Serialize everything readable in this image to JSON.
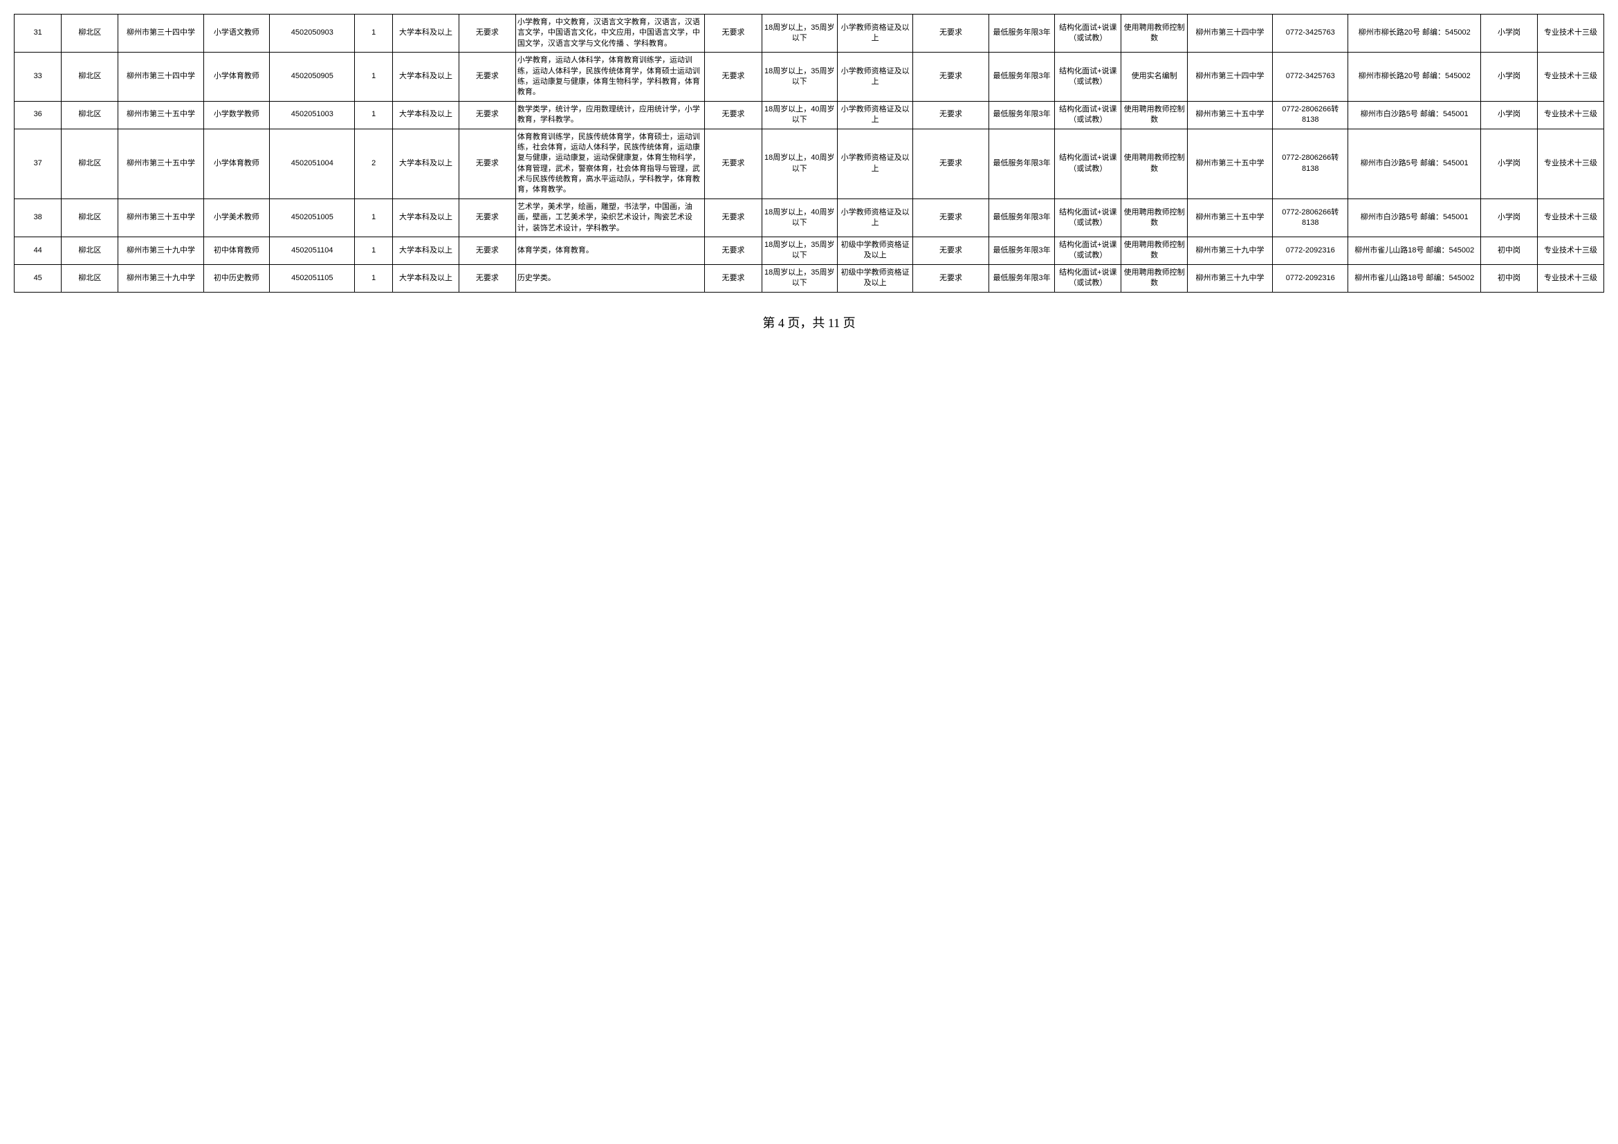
{
  "footer": "第 4 页，共 11 页",
  "columns": [
    "c0",
    "c1",
    "c2",
    "c3",
    "c4",
    "c5",
    "c6",
    "c7",
    "c8",
    "c9",
    "c10",
    "c11",
    "c12",
    "c13",
    "c14",
    "c15",
    "c16",
    "c17",
    "c18",
    "c19",
    "c20"
  ],
  "rows": [
    {
      "cells": [
        "31",
        "柳北区",
        "柳州市第三十四中学",
        "小学语文教师",
        "4502050903",
        "1",
        "大学本科及以上",
        "无要求",
        "小学教育，中文教育，汉语言文字教育，汉语言，汉语言文学，中国语言文化，中文应用，中国语言文学，中国文学，汉语言文学与文化传播 、学科教育。",
        "无要求",
        "18周岁以上，35周岁以下",
        "小学教师资格证及以上",
        "无要求",
        "最低服务年限3年",
        "结构化面试+说课（或试教）",
        "使用聘用教师控制数",
        "柳州市第三十四中学",
        "0772-3425763",
        "柳州市柳长路20号 邮编：545002",
        "小学岗",
        "专业技术十三级"
      ]
    },
    {
      "cells": [
        "33",
        "柳北区",
        "柳州市第三十四中学",
        "小学体育教师",
        "4502050905",
        "1",
        "大学本科及以上",
        "无要求",
        "小学教育，运动人体科学，体育教育训练学，运动训练，运动人体科学，民族传统体育学，体育硕士运动训练，运动康复与健康，体育生物科学，学科教育，体育教育。",
        "无要求",
        "18周岁以上，35周岁以下",
        "小学教师资格证及以上",
        "无要求",
        "最低服务年限3年",
        "结构化面试+说课（或试教）",
        "使用实名编制",
        "柳州市第三十四中学",
        "0772-3425763",
        "柳州市柳长路20号 邮编：545002",
        "小学岗",
        "专业技术十三级"
      ]
    },
    {
      "cells": [
        "36",
        "柳北区",
        "柳州市第三十五中学",
        "小学数学教师",
        "4502051003",
        "1",
        "大学本科及以上",
        "无要求",
        "数学类学，统计学，应用数理统计，应用统计学，小学教育，学科教学。",
        "无要求",
        "18周岁以上，40周岁以下",
        "小学教师资格证及以上",
        "无要求",
        "最低服务年限3年",
        "结构化面试+说课（或试教）",
        "使用聘用教师控制数",
        "柳州市第三十五中学",
        "0772-2806266转8138",
        "柳州市白沙路5号 邮编：545001",
        "小学岗",
        "专业技术十三级"
      ]
    },
    {
      "cells": [
        "37",
        "柳北区",
        "柳州市第三十五中学",
        "小学体育教师",
        "4502051004",
        "2",
        "大学本科及以上",
        "无要求",
        "体育教育训练学，民族传统体育学，体育硕士，运动训练，社会体育，运动人体科学，民族传统体育，运动康复与健康，运动康复，运动保健康复，体育生物科学，体育管理，武术，警察体育，社会体育指导与管理，武术与民族传统教育，高水平运动队，学科教学，体育教育，体育教学。",
        "无要求",
        "18周岁以上，40周岁以下",
        "小学教师资格证及以上",
        "无要求",
        "最低服务年限3年",
        "结构化面试+说课（或试教）",
        "使用聘用教师控制数",
        "柳州市第三十五中学",
        "0772-2806266转8138",
        "柳州市白沙路5号 邮编：545001",
        "小学岗",
        "专业技术十三级"
      ]
    },
    {
      "cells": [
        "38",
        "柳北区",
        "柳州市第三十五中学",
        "小学美术教师",
        "4502051005",
        "1",
        "大学本科及以上",
        "无要求",
        "艺术学，美术学，绘画，雕塑，书法学，中国画，油画，壁画，工艺美术学，染织艺术设计，陶瓷艺术设计，装饰艺术设计，学科教学。",
        "无要求",
        "18周岁以上，40周岁以下",
        "小学教师资格证及以上",
        "无要求",
        "最低服务年限3年",
        "结构化面试+说课（或试教）",
        "使用聘用教师控制数",
        "柳州市第三十五中学",
        "0772-2806266转8138",
        "柳州市白沙路5号 邮编：545001",
        "小学岗",
        "专业技术十三级"
      ]
    },
    {
      "cells": [
        "44",
        "柳北区",
        "柳州市第三十九中学",
        "初中体育教师",
        "4502051104",
        "1",
        "大学本科及以上",
        "无要求",
        "体育学类，体育教育。",
        "无要求",
        "18周岁以上，35周岁以下",
        "初级中学教师资格证及以上",
        "无要求",
        "最低服务年限3年",
        "结构化面试+说课（或试教）",
        "使用聘用教师控制数",
        "柳州市第三十九中学",
        "0772-2092316",
        "柳州市雀儿山路18号 邮编：545002",
        "初中岗",
        "专业技术十三级"
      ]
    },
    {
      "cells": [
        "45",
        "柳北区",
        "柳州市第三十九中学",
        "初中历史教师",
        "4502051105",
        "1",
        "大学本科及以上",
        "无要求",
        "历史学类。",
        "无要求",
        "18周岁以上，35周岁以下",
        "初级中学教师资格证及以上",
        "无要求",
        "最低服务年限3年",
        "结构化面试+说课（或试教）",
        "使用聘用教师控制数",
        "柳州市第三十九中学",
        "0772-2092316",
        "柳州市雀儿山路18号 邮编：545002",
        "初中岗",
        "专业技术十三级"
      ]
    }
  ]
}
